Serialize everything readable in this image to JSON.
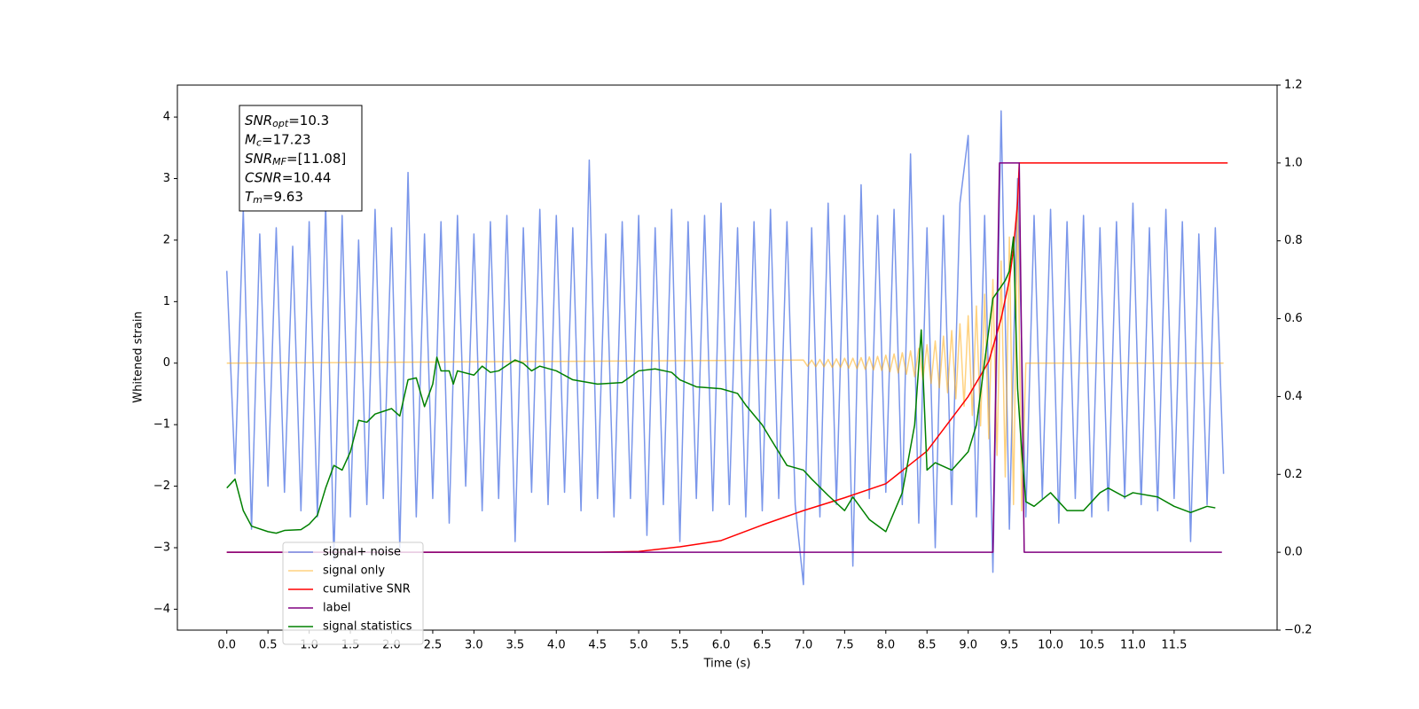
{
  "chart_data": {
    "type": "line",
    "xlabel": "Time (s)",
    "ylabel": "Whitened strain",
    "xlim": [
      -0.6,
      12.75
    ],
    "ylim": [
      -4.34,
      4.52
    ],
    "y2lim": [
      -0.2,
      1.2
    ],
    "xticks": [
      {
        "value": 0,
        "label": "0.0"
      },
      0.5,
      {
        "value": 1,
        "label": "1.0"
      },
      1.5,
      {
        "value": 2,
        "label": "2.0"
      },
      2.5,
      {
        "value": 3,
        "label": "3.0"
      },
      3.5,
      {
        "value": 4,
        "label": "4.0"
      },
      4.5,
      {
        "value": 5,
        "label": "5.0"
      },
      5.5,
      {
        "value": 6,
        "label": "6.0"
      },
      6.5,
      {
        "value": 7,
        "label": "7.0"
      },
      7.5,
      {
        "value": 8,
        "label": "8.0"
      },
      8.5,
      {
        "value": 9,
        "label": "9.0"
      },
      9.5,
      {
        "value": 10,
        "label": "10.0"
      },
      10.5,
      {
        "value": 11,
        "label": "11.0"
      },
      11.5
    ],
    "yticks": [
      {
        "value": -4,
        "label": "−4"
      },
      {
        "value": -3,
        "label": "−3"
      },
      {
        "value": -2,
        "label": "−2"
      },
      {
        "value": -1,
        "label": "−1"
      },
      0,
      1,
      2,
      3,
      4
    ],
    "y2ticks": [
      {
        "value": -0.2,
        "label": "−0.2"
      },
      {
        "value": 0,
        "label": "0.0"
      },
      0.2,
      0.4,
      0.6,
      0.8,
      {
        "value": 1,
        "label": "1.0"
      },
      1.2
    ],
    "legend": "lower left",
    "annotations": [
      {
        "symbol": "SNR",
        "subscript": "opt",
        "text": "=10.3"
      },
      {
        "symbol": "M",
        "subscript": "c",
        "text": "=17.23"
      },
      {
        "symbol": "SNR",
        "subscript": "MF",
        "text": "=[11.08]"
      },
      {
        "symbol": "CSNR",
        "text": "=10.44"
      },
      {
        "symbol": "T",
        "subscript": "m",
        "text": "=9.63"
      }
    ],
    "series": [
      {
        "name": "signal+ noise",
        "color": "#4169e1",
        "alpha": 0.7,
        "x": [
          0.0,
          0.1,
          0.2,
          0.3,
          0.4,
          0.5,
          0.6,
          0.7,
          0.8,
          0.9,
          1.0,
          1.1,
          1.2,
          1.3,
          1.4,
          1.5,
          1.6,
          1.7,
          1.8,
          1.9,
          2.0,
          2.1,
          2.2,
          2.3,
          2.4,
          2.5,
          2.6,
          2.7,
          2.8,
          2.9,
          3.0,
          3.1,
          3.2,
          3.3,
          3.4,
          3.5,
          3.6,
          3.7,
          3.8,
          3.9,
          4.0,
          4.1,
          4.2,
          4.3,
          4.4,
          4.5,
          4.6,
          4.7,
          4.8,
          4.9,
          5.0,
          5.1,
          5.2,
          5.3,
          5.4,
          5.5,
          5.6,
          5.7,
          5.8,
          5.9,
          6.0,
          6.1,
          6.2,
          6.3,
          6.4,
          6.5,
          6.6,
          6.7,
          6.8,
          6.9,
          7.0,
          7.1,
          7.2,
          7.3,
          7.4,
          7.5,
          7.6,
          7.7,
          7.8,
          7.9,
          8.0,
          8.1,
          8.2,
          8.3,
          8.4,
          8.5,
          8.6,
          8.7,
          8.8,
          8.9,
          9.0,
          9.1,
          9.2,
          9.3,
          9.4,
          9.5,
          9.6,
          9.7,
          9.8,
          9.9,
          10.0,
          10.1,
          10.2,
          10.3,
          10.4,
          10.5,
          10.6,
          10.7,
          10.8,
          10.9,
          11.0,
          11.1,
          11.2,
          11.3,
          11.4,
          11.5,
          11.6,
          11.7,
          11.8,
          11.9,
          12.0,
          12.1
        ],
        "values": [
          1.5,
          -1.8,
          2.5,
          -2.7,
          2.1,
          -2.0,
          2.2,
          -2.1,
          1.9,
          -2.4,
          2.3,
          -2.5,
          2.6,
          -3.2,
          2.4,
          -2.5,
          2.0,
          -2.3,
          2.5,
          -2.2,
          2.2,
          -3.0,
          3.1,
          -2.5,
          2.1,
          -2.2,
          2.3,
          -2.6,
          2.4,
          -2.0,
          2.1,
          -2.4,
          2.3,
          -2.2,
          2.4,
          -2.9,
          2.2,
          -2.1,
          2.5,
          -2.3,
          2.4,
          -2.1,
          2.2,
          -2.4,
          3.3,
          -2.2,
          2.1,
          -2.5,
          2.3,
          -2.2,
          2.4,
          -2.8,
          2.2,
          -2.3,
          2.5,
          -2.9,
          2.3,
          -2.2,
          2.4,
          -2.4,
          2.6,
          -2.3,
          2.2,
          -2.5,
          2.3,
          -2.4,
          2.5,
          -2.2,
          2.3,
          -2.3,
          -3.6,
          2.2,
          -2.5,
          2.6,
          -2.3,
          2.4,
          -3.3,
          2.9,
          -2.2,
          2.4,
          -2.1,
          2.5,
          -2.3,
          3.4,
          -2.6,
          2.2,
          -3.0,
          2.4,
          -2.3,
          2.6,
          3.7,
          -2.5,
          2.4,
          -3.4,
          4.1,
          -2.7,
          3.0,
          -2.5,
          2.4,
          -2.2,
          2.5,
          -2.6,
          2.3,
          -2.2,
          2.4,
          -2.5,
          2.2,
          -2.4,
          2.3,
          -2.2,
          2.6,
          -2.3,
          2.2,
          -2.4,
          2.5,
          -2.2,
          2.3,
          -2.9,
          2.1,
          -2.3,
          2.2,
          -1.8
        ]
      },
      {
        "name": "signal only",
        "color": "#ffa500",
        "alpha": 0.5,
        "x": [
          0,
          7.0,
          7.05,
          7.1,
          7.15,
          7.2,
          7.25,
          7.3,
          7.35,
          7.4,
          7.45,
          7.5,
          7.55,
          7.6,
          7.65,
          7.7,
          7.75,
          7.8,
          7.85,
          7.9,
          7.95,
          8.0,
          8.05,
          8.1,
          8.15,
          8.2,
          8.25,
          8.3,
          8.35,
          8.4,
          8.45,
          8.5,
          8.55,
          8.6,
          8.65,
          8.7,
          8.75,
          8.8,
          8.85,
          8.9,
          8.95,
          9.0,
          9.05,
          9.1,
          9.15,
          9.2,
          9.25,
          9.3,
          9.35,
          9.4,
          9.45,
          9.5,
          9.55,
          9.6,
          9.65,
          9.7,
          12.1
        ],
        "values": [
          0,
          0.05,
          -0.05,
          0.05,
          -0.06,
          0.06,
          -0.06,
          0.06,
          -0.07,
          0.07,
          -0.07,
          0.08,
          -0.08,
          0.08,
          -0.09,
          0.09,
          -0.1,
          0.1,
          -0.11,
          0.11,
          -0.12,
          0.13,
          -0.14,
          0.15,
          -0.16,
          0.17,
          -0.18,
          0.2,
          -0.22,
          0.24,
          -0.27,
          0.3,
          -0.33,
          0.36,
          -0.4,
          0.44,
          -0.48,
          0.53,
          -0.58,
          0.64,
          -0.7,
          0.77,
          -0.85,
          0.93,
          -1.02,
          1.12,
          -1.23,
          1.36,
          -1.5,
          1.66,
          -1.85,
          2.05,
          -2.3,
          2.55,
          -2.4,
          0,
          0
        ]
      },
      {
        "name": "cumilative SNR",
        "color": "#ff0000",
        "axis": "y2",
        "x": [
          0,
          4.5,
          5.0,
          5.5,
          6.0,
          6.5,
          7.0,
          7.5,
          8.0,
          8.5,
          9.0,
          9.25,
          9.4,
          9.5,
          9.55,
          9.6,
          9.62,
          12.15
        ],
        "values": [
          0,
          0,
          0.002,
          0.014,
          0.03,
          0.07,
          0.107,
          0.14,
          0.176,
          0.26,
          0.4,
          0.49,
          0.6,
          0.7,
          0.78,
          0.9,
          1.0,
          1.0
        ]
      },
      {
        "name": "label",
        "color": "#800080",
        "axis": "y2",
        "x": [
          0,
          9.3,
          9.38,
          9.62,
          9.68,
          12.08
        ],
        "values": [
          0,
          0,
          1,
          1,
          0,
          0
        ]
      },
      {
        "name": "signal statistics",
        "color": "#008000",
        "axis": "y2",
        "x": [
          0.0,
          0.1,
          0.2,
          0.3,
          0.5,
          0.6,
          0.7,
          0.9,
          1.0,
          1.1,
          1.2,
          1.3,
          1.4,
          1.5,
          1.6,
          1.7,
          1.8,
          1.9,
          2.0,
          2.1,
          2.2,
          2.3,
          2.4,
          2.5,
          2.55,
          2.6,
          2.7,
          2.75,
          2.8,
          3.0,
          3.1,
          3.2,
          3.3,
          3.5,
          3.6,
          3.7,
          3.8,
          4.0,
          4.2,
          4.5,
          4.8,
          5.0,
          5.2,
          5.4,
          5.5,
          5.7,
          6.0,
          6.2,
          6.3,
          6.5,
          6.6,
          6.8,
          7.0,
          7.1,
          7.3,
          7.5,
          7.6,
          7.8,
          8.0,
          8.2,
          8.35,
          8.43,
          8.5,
          8.6,
          8.8,
          9.0,
          9.1,
          9.2,
          9.3,
          9.45,
          9.5,
          9.55,
          9.6,
          9.65,
          9.7,
          9.8,
          10.0,
          10.2,
          10.4,
          10.6,
          10.7,
          10.9,
          11.0,
          11.3,
          11.5,
          11.7,
          11.9,
          12.0
        ],
        "values": [
          0.165,
          0.188,
          0.107,
          0.067,
          0.053,
          0.049,
          0.056,
          0.058,
          0.072,
          0.095,
          0.165,
          0.223,
          0.211,
          0.258,
          0.339,
          0.334,
          0.355,
          0.362,
          0.369,
          0.35,
          0.443,
          0.448,
          0.374,
          0.432,
          0.501,
          0.466,
          0.466,
          0.432,
          0.466,
          0.455,
          0.478,
          0.462,
          0.466,
          0.494,
          0.485,
          0.466,
          0.478,
          0.466,
          0.443,
          0.432,
          0.436,
          0.466,
          0.471,
          0.462,
          0.443,
          0.425,
          0.42,
          0.408,
          0.378,
          0.327,
          0.292,
          0.223,
          0.211,
          0.188,
          0.146,
          0.107,
          0.142,
          0.084,
          0.053,
          0.153,
          0.327,
          0.571,
          0.211,
          0.23,
          0.211,
          0.258,
          0.327,
          0.49,
          0.652,
          0.698,
          0.722,
          0.81,
          0.42,
          0.258,
          0.13,
          0.118,
          0.153,
          0.107,
          0.107,
          0.153,
          0.165,
          0.142,
          0.153,
          0.142,
          0.118,
          0.102,
          0.118,
          0.114
        ]
      }
    ]
  }
}
